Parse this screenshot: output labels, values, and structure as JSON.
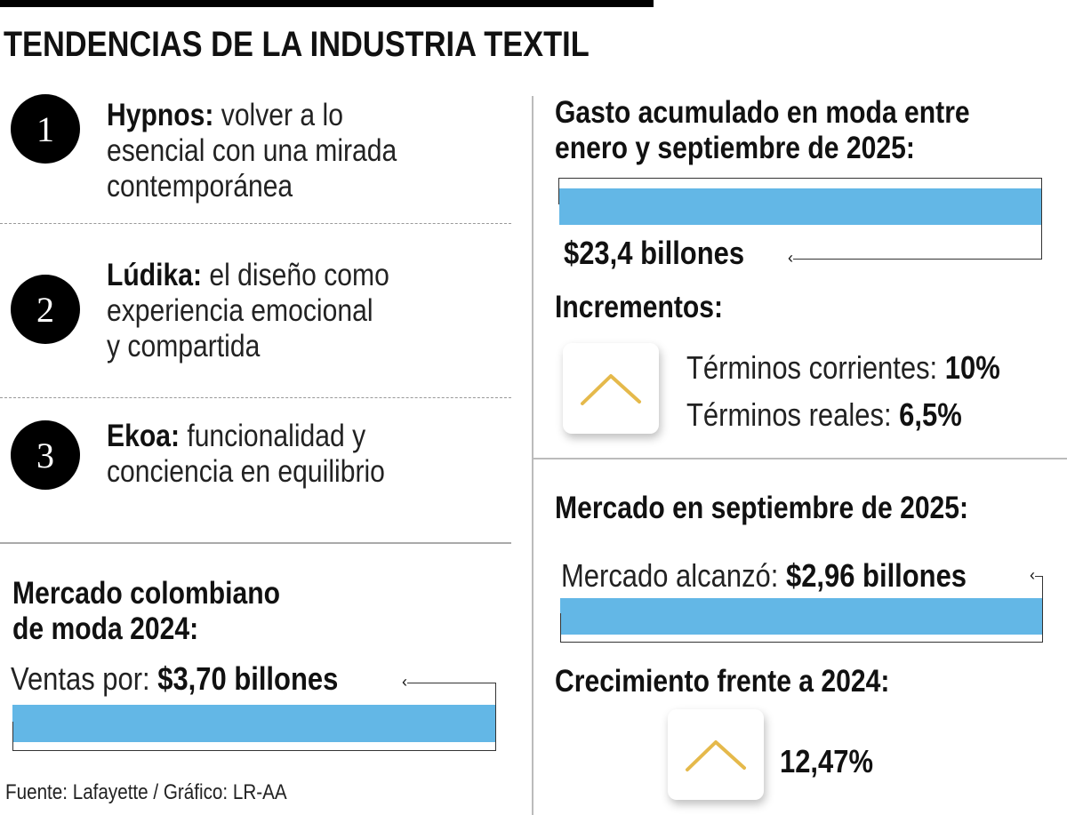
{
  "title": "TENDENCIAS DE LA INDUSTRIA TEXTIL",
  "trends": [
    {
      "number": "1",
      "name": "Hypnos:",
      "lines": [
        " volver a lo",
        "esencial con una mirada",
        "contemporánea"
      ]
    },
    {
      "number": "2",
      "name": "Lúdika:",
      "lines": [
        " el diseño como",
        "experiencia emocional",
        "y compartida"
      ]
    },
    {
      "number": "3",
      "name": "Ekoa:",
      "lines": [
        " funcionalidad y",
        "conciencia en equilibrio"
      ]
    }
  ],
  "market2024": {
    "heading_lines": [
      "Mercado colombiano",
      "de moda 2024:"
    ],
    "label": "Ventas por: ",
    "value": "$3,70 billones"
  },
  "source": "Fuente: Lafayette / Gráfico: LR-AA",
  "spending": {
    "heading_lines": [
      "Gasto acumulado en moda entre",
      "enero y septiembre de 2025:"
    ],
    "value": "$23,4 billones"
  },
  "increments": {
    "heading": "Incrementos:",
    "icon": "chevron-up-icon",
    "items": [
      {
        "label": "Términos corrientes: ",
        "value": "10%"
      },
      {
        "label": "Términos reales: ",
        "value": "6,5%"
      }
    ]
  },
  "september": {
    "heading": "Mercado en septiembre de 2025:",
    "label": "Mercado alcanzó: ",
    "value": "$2,96 billones"
  },
  "growth": {
    "heading": "Crecimiento frente a 2024:",
    "icon": "chevron-up-icon",
    "value": "12,47%"
  },
  "colors": {
    "bar": "#63b7e6",
    "chevron": "#e5b94b",
    "text": "#111111"
  }
}
